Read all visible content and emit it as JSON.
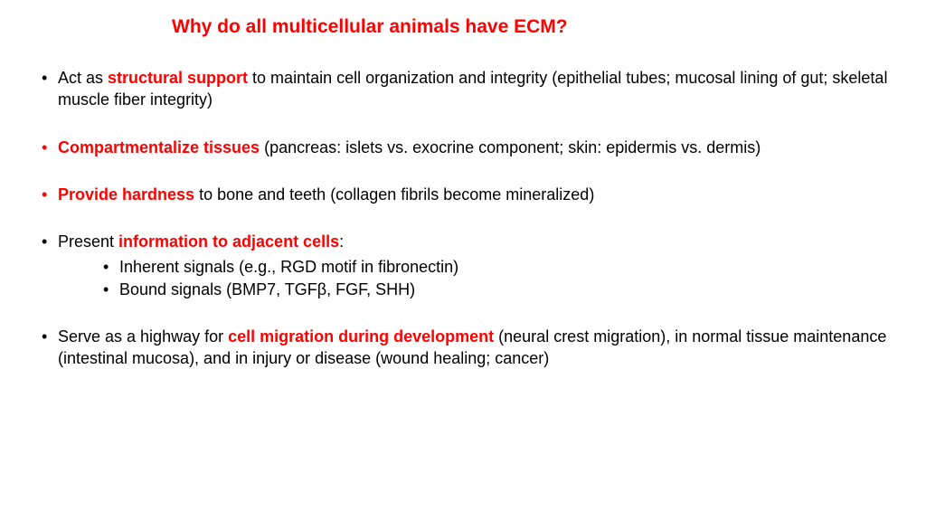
{
  "title": "Why do all multicellular animals have ECM?",
  "colors": {
    "emphasis": "#ff0000",
    "text": "#000000",
    "background": "#ffffff"
  },
  "bullets": [
    {
      "bullet_color": "black",
      "segments": [
        {
          "text": "Act as ",
          "red": false,
          "bold": false
        },
        {
          "text": "structural support",
          "red": true,
          "bold": true
        },
        {
          "text": " to maintain cell organization and integrity (epithelial tubes; mucosal lining of gut; skeletal muscle fiber integrity)",
          "red": false,
          "bold": false
        }
      ]
    },
    {
      "bullet_color": "red",
      "segments": [
        {
          "text": "Compartmentalize tissues",
          "red": true,
          "bold": true
        },
        {
          "text": " (pancreas: islets vs. exocrine component; skin: epidermis vs. dermis)",
          "red": false,
          "bold": false
        }
      ]
    },
    {
      "bullet_color": "red",
      "segments": [
        {
          "text": "Provide hardness",
          "red": true,
          "bold": true
        },
        {
          "text": " to bone and teeth (collagen fibrils become mineralized)",
          "red": false,
          "bold": false
        }
      ]
    },
    {
      "bullet_color": "black",
      "segments": [
        {
          "text": "Present ",
          "red": false,
          "bold": false
        },
        {
          "text": "information to adjacent cells",
          "red": true,
          "bold": true
        },
        {
          "text": ":",
          "red": false,
          "bold": false
        }
      ],
      "sub": [
        {
          "text": "Inherent signals (e.g., RGD motif in fibronectin)"
        },
        {
          "text": "Bound signals (BMP7, TGFβ, FGF, SHH)"
        }
      ]
    },
    {
      "bullet_color": "black",
      "segments": [
        {
          "text": "Serve as a highway for ",
          "red": false,
          "bold": false
        },
        {
          "text": "cell migration during development",
          "red": true,
          "bold": true
        },
        {
          "text": " (neural crest migration), in normal tissue maintenance (intestinal mucosa), and in injury or disease (wound healing; cancer)",
          "red": false,
          "bold": false
        }
      ]
    }
  ]
}
